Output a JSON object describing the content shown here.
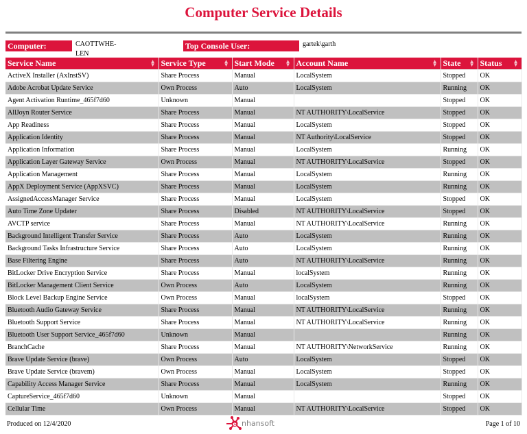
{
  "header": {
    "title": "Computer Service Details"
  },
  "info": {
    "computer_label": "Computer:",
    "computer_value": "CAOTTWHE-LEN",
    "user_label": "Top Console User:",
    "user_value": "gartek\\garth"
  },
  "table": {
    "columns": [
      "Service Name",
      "Service Type",
      "Start Mode",
      "Account Name",
      "State",
      "Status"
    ],
    "rows": [
      [
        "ActiveX Installer (AxInstSV)",
        "Share Process",
        "Manual",
        "LocalSystem",
        "Stopped",
        "OK"
      ],
      [
        "Adobe Acrobat Update Service",
        "Own Process",
        "Auto",
        "LocalSystem",
        "Running",
        "OK"
      ],
      [
        "Agent Activation Runtime_465f7d60",
        "Unknown",
        "Manual",
        "",
        "Stopped",
        "OK"
      ],
      [
        "AllJoyn Router Service",
        "Share Process",
        "Manual",
        "NT AUTHORITY\\LocalService",
        "Stopped",
        "OK"
      ],
      [
        "App Readiness",
        "Share Process",
        "Manual",
        "LocalSystem",
        "Stopped",
        "OK"
      ],
      [
        "Application Identity",
        "Share Process",
        "Manual",
        "NT Authority\\LocalService",
        "Stopped",
        "OK"
      ],
      [
        "Application Information",
        "Share Process",
        "Manual",
        "LocalSystem",
        "Running",
        "OK"
      ],
      [
        "Application Layer Gateway Service",
        "Own Process",
        "Manual",
        "NT AUTHORITY\\LocalService",
        "Stopped",
        "OK"
      ],
      [
        "Application Management",
        "Share Process",
        "Manual",
        "LocalSystem",
        "Running",
        "OK"
      ],
      [
        "AppX Deployment Service (AppXSVC)",
        "Share Process",
        "Manual",
        "LocalSystem",
        "Running",
        "OK"
      ],
      [
        "AssignedAccessManager Service",
        "Share Process",
        "Manual",
        "LocalSystem",
        "Stopped",
        "OK"
      ],
      [
        "Auto Time Zone Updater",
        "Share Process",
        "Disabled",
        "NT AUTHORITY\\LocalService",
        "Stopped",
        "OK"
      ],
      [
        "AVCTP service",
        "Share Process",
        "Manual",
        "NT AUTHORITY\\LocalService",
        "Running",
        "OK"
      ],
      [
        "Background Intelligent Transfer Service",
        "Share Process",
        "Auto",
        "LocalSystem",
        "Running",
        "OK"
      ],
      [
        "Background Tasks Infrastructure Service",
        "Share Process",
        "Auto",
        "LocalSystem",
        "Running",
        "OK"
      ],
      [
        "Base Filtering Engine",
        "Share Process",
        "Auto",
        "NT AUTHORITY\\LocalService",
        "Running",
        "OK"
      ],
      [
        "BitLocker Drive Encryption Service",
        "Share Process",
        "Manual",
        "localSystem",
        "Running",
        "OK"
      ],
      [
        "BitLocker Management Client Service",
        "Own Process",
        "Auto",
        "LocalSystem",
        "Running",
        "OK"
      ],
      [
        "Block Level Backup Engine Service",
        "Own Process",
        "Manual",
        "localSystem",
        "Stopped",
        "OK"
      ],
      [
        "Bluetooth Audio Gateway Service",
        "Share Process",
        "Manual",
        "NT AUTHORITY\\LocalService",
        "Running",
        "OK"
      ],
      [
        "Bluetooth Support Service",
        "Share Process",
        "Manual",
        "NT AUTHORITY\\LocalService",
        "Running",
        "OK"
      ],
      [
        "Bluetooth User Support Service_465f7d60",
        "Unknown",
        "Manual",
        "",
        "Running",
        "OK"
      ],
      [
        "BranchCache",
        "Share Process",
        "Manual",
        "NT AUTHORITY\\NetworkService",
        "Running",
        "OK"
      ],
      [
        "Brave Update Service (brave)",
        "Own Process",
        "Auto",
        "LocalSystem",
        "Stopped",
        "OK"
      ],
      [
        "Brave Update Service (bravem)",
        "Own Process",
        "Manual",
        "LocalSystem",
        "Stopped",
        "OK"
      ],
      [
        "Capability Access Manager Service",
        "Share Process",
        "Manual",
        "LocalSystem",
        "Running",
        "OK"
      ],
      [
        "CaptureService_465f7d60",
        "Unknown",
        "Manual",
        "",
        "Stopped",
        "OK"
      ],
      [
        "Cellular Time",
        "Own Process",
        "Manual",
        "NT AUTHORITY\\LocalService",
        "Stopped",
        "OK"
      ]
    ]
  },
  "footer": {
    "produced": "Produced on 12/4/2020",
    "logo_text": "nhansoft",
    "page": "Page 1 of 10"
  },
  "colors": {
    "accent": "#dc143c",
    "alt_row": "#c0c0c0",
    "rule": "#808080"
  }
}
